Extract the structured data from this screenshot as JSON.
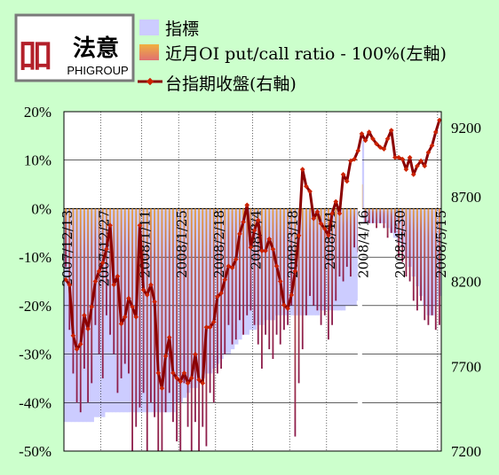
{
  "logo": {
    "glyph": "吅",
    "brand_cn": "法意",
    "brand_en": "PHIGROUP"
  },
  "colors": {
    "background": "#ccffcc",
    "indicator_fill": "#ccccff",
    "ratio_bar": "#8b1a4a",
    "ratio_bar_light": "#e8a040",
    "index_line": "#8b0000",
    "logo_red": "#b3202a"
  },
  "chart_data": {
    "type": "bar+line",
    "legend": {
      "placement": "top",
      "items": [
        "指標",
        "近月OI put/call ratio - 100%(左軸)",
        "台指期收盤(右軸)"
      ]
    },
    "y_left": {
      "ticks": [
        "20%",
        "10%",
        "0%",
        "-10%",
        "-20%",
        "-30%",
        "-40%",
        "-50%"
      ],
      "range": [
        -50,
        20
      ]
    },
    "y_right": {
      "ticks": [
        "9200",
        "8700",
        "8200",
        "7700",
        "7200"
      ],
      "range": [
        7200,
        9200
      ]
    },
    "x_tick_labels": [
      {
        "label": "2007/12/13",
        "index": 0
      },
      {
        "label": "2007/12/27",
        "index": 10
      },
      {
        "label": "2008/1/11",
        "index": 21
      },
      {
        "label": "2008/1/25",
        "index": 31
      },
      {
        "label": "2008/2/18",
        "index": 41
      },
      {
        "label": "2008/3/4",
        "index": 51
      },
      {
        "label": "2008/3/18",
        "index": 61
      },
      {
        "label": "2008/4/1",
        "index": 71
      },
      {
        "label": "2008/4/16",
        "index": 80
      },
      {
        "label": "2008/4/30",
        "index": 90
      },
      {
        "label": "2008/5/15",
        "index": 101
      }
    ],
    "grid": true,
    "gap_after_index": 79,
    "series": [
      {
        "name": "指標",
        "type": "area",
        "values": [
          -44,
          -44,
          -44,
          -44,
          -44,
          -44,
          -44,
          -44,
          -43,
          -43,
          -43,
          -42,
          -42,
          -42,
          -42,
          -42,
          -42,
          -42,
          -42,
          -42,
          -42,
          -42,
          -42,
          -42,
          -42,
          -42,
          -42,
          -42,
          -42,
          -42,
          -40,
          -40,
          -39,
          -38,
          -37,
          -37,
          -36,
          -35,
          -34,
          -34,
          -33,
          -32,
          -31,
          -30,
          -30,
          -29,
          -28,
          -27,
          -26,
          -26,
          -25,
          -25,
          -24,
          -24,
          -23,
          -23,
          -23,
          -22,
          -22,
          -22,
          -22,
          -22,
          -22,
          -22,
          -22,
          -22,
          -22,
          -22,
          -22,
          -21,
          -21,
          -21,
          -21,
          -21,
          -21,
          -21,
          -20,
          -20,
          -20,
          -19,
          14,
          -3,
          -3,
          -3,
          -3,
          -3,
          -3,
          -4,
          -5,
          -6,
          -7,
          -8,
          -10,
          -12,
          -14,
          -16,
          -18,
          -20,
          -22,
          -22,
          -20,
          -18
        ]
      },
      {
        "name": "近月OI put/call ratio - 100%",
        "type": "bar",
        "values": [
          -12,
          -25,
          -34,
          -40,
          -42,
          -33,
          -40,
          -36,
          -24,
          -30,
          -35,
          -22,
          -26,
          -30,
          -38,
          -35,
          -32,
          -34,
          -50,
          -45,
          -41,
          -38,
          -50,
          -40,
          -43,
          -50,
          -50,
          -42,
          -38,
          -44,
          -48,
          -50,
          -36,
          -45,
          -50,
          -44,
          -50,
          -45,
          -49,
          -38,
          -40,
          -34,
          -33,
          -30,
          -24,
          -28,
          -27,
          -23,
          -26,
          -22,
          -21,
          -24,
          -28,
          -33,
          -26,
          -29,
          -31,
          -26,
          -28,
          -25,
          -24,
          -20,
          -47,
          -36,
          -29,
          -22,
          -18,
          -20,
          -21,
          -24,
          -22,
          -27,
          -24,
          -19,
          -14,
          -15,
          -12,
          -14,
          -8,
          -9,
          5,
          -3,
          -3,
          -3,
          -4,
          -3,
          -4,
          -6,
          -5,
          -5,
          -10,
          -11,
          -14,
          -15,
          -19,
          -21,
          -19,
          -23,
          -24,
          -22,
          -25,
          -24
        ]
      },
      {
        "name": "台指期收盤",
        "type": "line",
        "values": [
          8210,
          8180,
          7880,
          7800,
          7830,
          8000,
          7920,
          8050,
          8200,
          8260,
          8310,
          8390,
          8530,
          8180,
          8230,
          7950,
          7990,
          8100,
          8050,
          7990,
          8530,
          8150,
          8120,
          8180,
          8080,
          7660,
          7570,
          7760,
          7870,
          7660,
          7630,
          7610,
          7660,
          7600,
          7630,
          7770,
          7620,
          7600,
          7930,
          7930,
          7960,
          8110,
          8130,
          8210,
          8290,
          8280,
          8330,
          8480,
          8550,
          8650,
          8400,
          8500,
          8560,
          8380,
          8380,
          8450,
          8390,
          8290,
          8200,
          8060,
          8040,
          8120,
          8260,
          8470,
          8860,
          8760,
          8730,
          8570,
          8610,
          8540,
          8510,
          8470,
          8600,
          8670,
          8600,
          8830,
          8790,
          8910,
          8920,
          8970,
          9070,
          9030,
          9080,
          9040,
          9010,
          8990,
          8980,
          9040,
          9090,
          8930,
          8930,
          8920,
          8860,
          8930,
          8830,
          8880,
          8910,
          8880,
          8960,
          9000,
          9080,
          9150
        ]
      }
    ]
  }
}
